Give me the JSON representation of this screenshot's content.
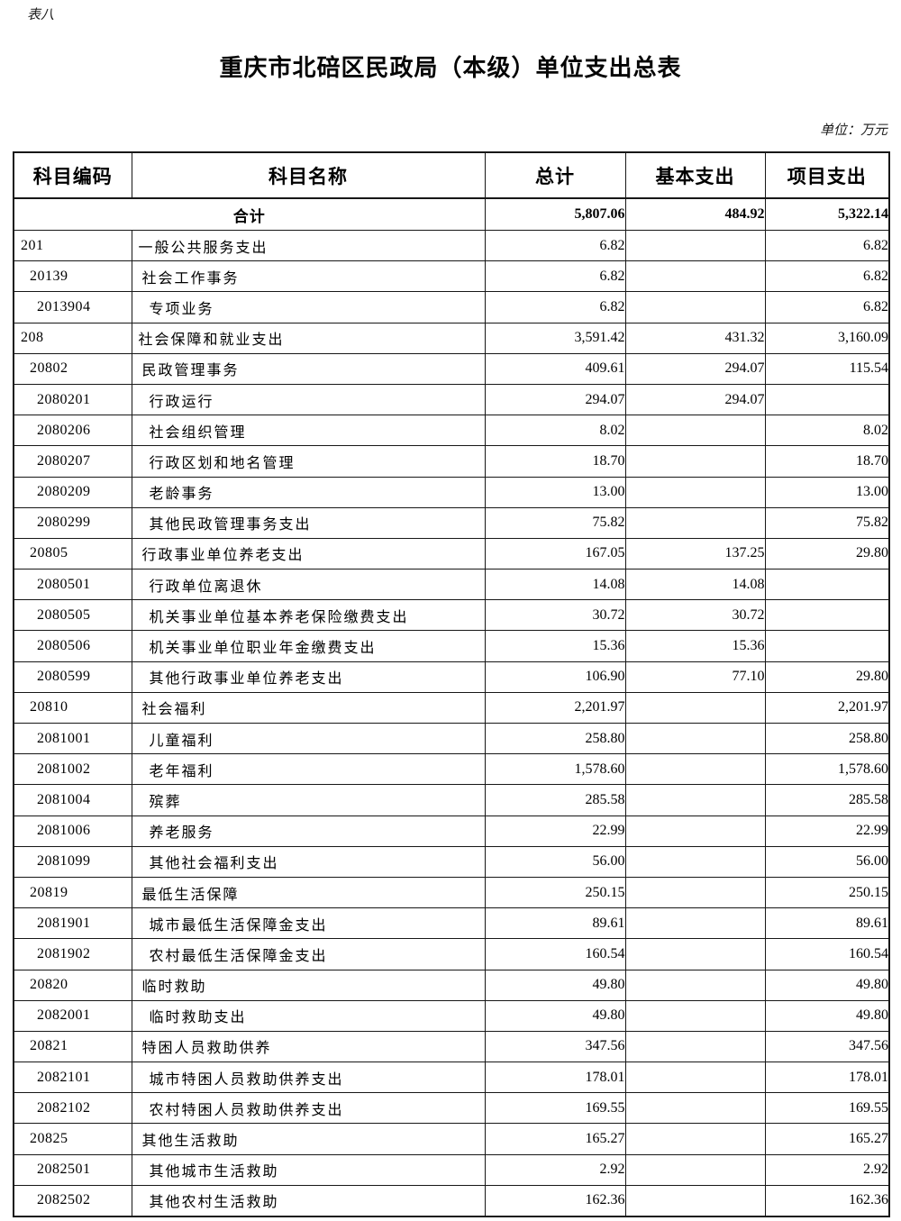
{
  "page": {
    "table_label": "表八",
    "title": "重庆市北碚区民政局（本级）单位支出总表",
    "unit_note": "单位：万元"
  },
  "table": {
    "columns": [
      "科目编码",
      "科目名称",
      "总计",
      "基本支出",
      "项目支出"
    ],
    "total_row": {
      "label": "合计",
      "total": "5,807.06",
      "basic": "484.92",
      "project": "5,322.14"
    },
    "rows": [
      {
        "code": "201",
        "name": "一般公共服务支出",
        "level": 1,
        "total": "6.82",
        "basic": "",
        "project": "6.82"
      },
      {
        "code": "20139",
        "name": "社会工作事务",
        "level": 2,
        "total": "6.82",
        "basic": "",
        "project": "6.82"
      },
      {
        "code": "2013904",
        "name": "专项业务",
        "level": 3,
        "total": "6.82",
        "basic": "",
        "project": "6.82"
      },
      {
        "code": "208",
        "name": "社会保障和就业支出",
        "level": 1,
        "total": "3,591.42",
        "basic": "431.32",
        "project": "3,160.09"
      },
      {
        "code": "20802",
        "name": "民政管理事务",
        "level": 2,
        "total": "409.61",
        "basic": "294.07",
        "project": "115.54"
      },
      {
        "code": "2080201",
        "name": "行政运行",
        "level": 3,
        "total": "294.07",
        "basic": "294.07",
        "project": ""
      },
      {
        "code": "2080206",
        "name": "社会组织管理",
        "level": 3,
        "total": "8.02",
        "basic": "",
        "project": "8.02"
      },
      {
        "code": "2080207",
        "name": "行政区划和地名管理",
        "level": 3,
        "total": "18.70",
        "basic": "",
        "project": "18.70"
      },
      {
        "code": "2080209",
        "name": "老龄事务",
        "level": 3,
        "total": "13.00",
        "basic": "",
        "project": "13.00"
      },
      {
        "code": "2080299",
        "name": "其他民政管理事务支出",
        "level": 3,
        "total": "75.82",
        "basic": "",
        "project": "75.82"
      },
      {
        "code": "20805",
        "name": "行政事业单位养老支出",
        "level": 2,
        "total": "167.05",
        "basic": "137.25",
        "project": "29.80"
      },
      {
        "code": "2080501",
        "name": "行政单位离退休",
        "level": 3,
        "total": "14.08",
        "basic": "14.08",
        "project": ""
      },
      {
        "code": "2080505",
        "name": "机关事业单位基本养老保险缴费支出",
        "level": 3,
        "total": "30.72",
        "basic": "30.72",
        "project": ""
      },
      {
        "code": "2080506",
        "name": "机关事业单位职业年金缴费支出",
        "level": 3,
        "total": "15.36",
        "basic": "15.36",
        "project": ""
      },
      {
        "code": "2080599",
        "name": "其他行政事业单位养老支出",
        "level": 3,
        "total": "106.90",
        "basic": "77.10",
        "project": "29.80"
      },
      {
        "code": "20810",
        "name": "社会福利",
        "level": 2,
        "total": "2,201.97",
        "basic": "",
        "project": "2,201.97"
      },
      {
        "code": "2081001",
        "name": "儿童福利",
        "level": 3,
        "total": "258.80",
        "basic": "",
        "project": "258.80"
      },
      {
        "code": "2081002",
        "name": "老年福利",
        "level": 3,
        "total": "1,578.60",
        "basic": "",
        "project": "1,578.60"
      },
      {
        "code": "2081004",
        "name": "殡葬",
        "level": 3,
        "total": "285.58",
        "basic": "",
        "project": "285.58"
      },
      {
        "code": "2081006",
        "name": "养老服务",
        "level": 3,
        "total": "22.99",
        "basic": "",
        "project": "22.99"
      },
      {
        "code": "2081099",
        "name": "其他社会福利支出",
        "level": 3,
        "total": "56.00",
        "basic": "",
        "project": "56.00"
      },
      {
        "code": "20819",
        "name": "最低生活保障",
        "level": 2,
        "total": "250.15",
        "basic": "",
        "project": "250.15"
      },
      {
        "code": "2081901",
        "name": "城市最低生活保障金支出",
        "level": 3,
        "total": "89.61",
        "basic": "",
        "project": "89.61"
      },
      {
        "code": "2081902",
        "name": "农村最低生活保障金支出",
        "level": 3,
        "total": "160.54",
        "basic": "",
        "project": "160.54"
      },
      {
        "code": "20820",
        "name": "临时救助",
        "level": 2,
        "total": "49.80",
        "basic": "",
        "project": "49.80"
      },
      {
        "code": "2082001",
        "name": "临时救助支出",
        "level": 3,
        "total": "49.80",
        "basic": "",
        "project": "49.80"
      },
      {
        "code": "20821",
        "name": "特困人员救助供养",
        "level": 2,
        "total": "347.56",
        "basic": "",
        "project": "347.56"
      },
      {
        "code": "2082101",
        "name": "城市特困人员救助供养支出",
        "level": 3,
        "total": "178.01",
        "basic": "",
        "project": "178.01"
      },
      {
        "code": "2082102",
        "name": "农村特困人员救助供养支出",
        "level": 3,
        "total": "169.55",
        "basic": "",
        "project": "169.55"
      },
      {
        "code": "20825",
        "name": "其他生活救助",
        "level": 2,
        "total": "165.27",
        "basic": "",
        "project": "165.27"
      },
      {
        "code": "2082501",
        "name": "其他城市生活救助",
        "level": 3,
        "total": "2.92",
        "basic": "",
        "project": "2.92"
      },
      {
        "code": "2082502",
        "name": "其他农村生活救助",
        "level": 3,
        "total": "162.36",
        "basic": "",
        "project": "162.36"
      }
    ]
  }
}
